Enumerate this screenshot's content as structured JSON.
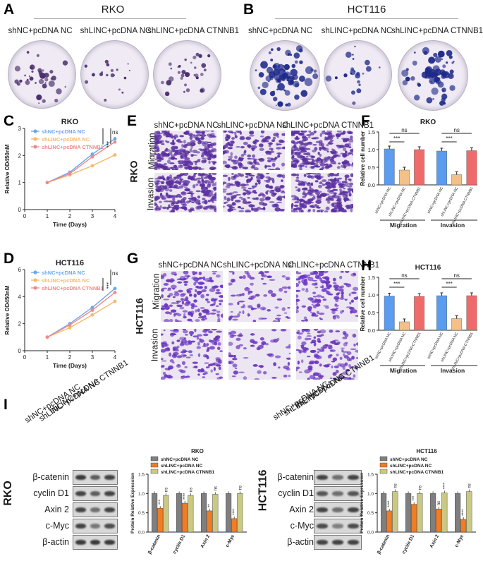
{
  "panels": {
    "A": {
      "letter": "A",
      "cell_line": "RKO",
      "groups": [
        "shNC+pcDNA NC",
        "shLINC+pcDNA NC",
        "shLINC+pcDNA CTNNB1"
      ]
    },
    "B": {
      "letter": "B",
      "cell_line": "HCT116",
      "groups": [
        "shNC+pcDNA NC",
        "shLINC+pcDNA NC",
        "shLINC+pcDNA CTNNB1"
      ]
    },
    "C": {
      "letter": "C"
    },
    "D": {
      "letter": "D"
    },
    "E": {
      "letter": "E",
      "cell_line": "RKO",
      "cols": [
        "shNC+pcDNA NC",
        "shLINC+pcDNA NC",
        "shLINC+pcDNA CTNNB1"
      ],
      "rows": [
        "Migration",
        "Invasion"
      ]
    },
    "F": {
      "letter": "F"
    },
    "G": {
      "letter": "G",
      "cell_line": "HCT116",
      "cols": [
        "shNC+pcDNA NC",
        "shLINC+pcDNA NC",
        "shLINC+pcDNA CTNNB1"
      ],
      "rows": [
        "Migration",
        "Invasion"
      ]
    },
    "H": {
      "letter": "H"
    },
    "I": {
      "letter": "I",
      "rko_label": "RKO",
      "hct_label": "HCT116",
      "lanes": [
        "shNC+pcDNA NC",
        "shLINC+pcDNA NC",
        "shLINC+pcDNA CTNNB1"
      ],
      "proteins": [
        "β-catenin",
        "cyclin D1",
        "Axin 2",
        "c-Myc",
        "β-actin"
      ]
    }
  },
  "colors": {
    "blue": "#6aa7ee",
    "orange": "#f5b96a",
    "pink": "#f08a8a",
    "bar_blue": "#5b9bf0",
    "bar_orange": "#f2c088",
    "bar_red": "#ef6b6b",
    "wb_gray": "#7f7f7f",
    "wb_orange": "#f07c24",
    "wb_olive": "#c9c985"
  },
  "chart_data": [
    {
      "id": "C",
      "type": "line",
      "title": "RKO",
      "xlabel": "Time (Days)",
      "ylabel": "Relative OD450nM",
      "x": [
        1,
        2,
        3,
        4
      ],
      "xlim": [
        0,
        4
      ],
      "ylim": [
        0,
        3
      ],
      "xticks": [
        "0",
        "1",
        "2",
        "3",
        "4"
      ],
      "yticks": [
        "0",
        "1",
        "2",
        "3"
      ],
      "series": [
        {
          "name": "shNC+pcDNA NC",
          "values": [
            1.0,
            1.38,
            2.05,
            2.62
          ]
        },
        {
          "name": "shLINC+pcDNA NC",
          "values": [
            1.0,
            1.28,
            1.62,
            2.02
          ]
        },
        {
          "name": "shLINC+pcDNA CTNNB1",
          "values": [
            1.0,
            1.33,
            1.95,
            2.5
          ]
        }
      ],
      "annotations": [
        "***",
        "ns"
      ]
    },
    {
      "id": "D",
      "type": "line",
      "title": "HCT116",
      "xlabel": "Time (Days)",
      "ylabel": "Relative OD450nM",
      "x": [
        1,
        2,
        3,
        4
      ],
      "xlim": [
        0,
        4
      ],
      "ylim": [
        0,
        6
      ],
      "xticks": [
        "0",
        "1",
        "2",
        "3",
        "4"
      ],
      "yticks": [
        "0",
        "2",
        "4",
        "6"
      ],
      "series": [
        {
          "name": "shNC+pcDNA NC",
          "values": [
            1.0,
            2.0,
            3.2,
            4.6
          ]
        },
        {
          "name": "shLINC+pcDNA NC",
          "values": [
            1.0,
            1.7,
            2.65,
            3.65
          ]
        },
        {
          "name": "shLINC+pcDNA CTNNB1",
          "values": [
            1.0,
            1.9,
            3.0,
            4.3
          ]
        }
      ],
      "annotations": [
        "***",
        "ns"
      ]
    },
    {
      "id": "F",
      "type": "bar",
      "title": "RKO",
      "ylabel": "Relative cell number",
      "ylim": [
        0,
        1.5
      ],
      "yticks": [
        "0.0",
        "0.5",
        "1.0",
        "1.5"
      ],
      "categories": [
        "shNC+pcDNA NC",
        "shLINC+pcDNA NC",
        "shLINC+pcDNA CTNNB1",
        "shNC+pcDNA NC",
        "shLINC+pcDNA NC",
        "shLINC+pcDNA CTNNB1"
      ],
      "values": [
        1.02,
        0.42,
        1.0,
        0.96,
        0.29,
        0.97
      ],
      "groups": [
        "Migration",
        "Invasion"
      ],
      "annotations": [
        "ns",
        "***",
        "ns",
        "***"
      ]
    },
    {
      "id": "H",
      "type": "bar",
      "title": "HCT116",
      "ylabel": "Relative cell number",
      "ylim": [
        0,
        1.5
      ],
      "yticks": [
        "0.0",
        "0.5",
        "1.0",
        "1.5"
      ],
      "categories": [
        "shNC+pcDNA NC",
        "shLINC+pcDNA NC",
        "shLINC+pcDNA CTNNB1",
        "shNC+pcDNA NC",
        "shLINC+pcDNA NC",
        "shLINC+pcDNA CTNNB1"
      ],
      "values": [
        0.97,
        0.24,
        0.96,
        0.98,
        0.33,
        0.98
      ],
      "groups": [
        "Migration",
        "Invasion"
      ],
      "annotations": [
        "ns",
        "***",
        "ns",
        "***"
      ]
    },
    {
      "id": "I-RKO",
      "type": "bar",
      "title": "RKO",
      "ylabel": "Protein Relative Expression",
      "ylim": [
        0,
        1.5
      ],
      "yticks": [
        "0.0",
        "0.5",
        "1.0",
        "1.5"
      ],
      "categories": [
        "β-catenin",
        "cyclin D1",
        "Axin 2",
        "c-Myc"
      ],
      "series": [
        {
          "name": "shNC+pcDNA NC",
          "values": [
            1.0,
            1.0,
            1.0,
            1.0
          ]
        },
        {
          "name": "shLINC+pcDNA NC",
          "values": [
            0.62,
            0.75,
            0.55,
            0.35
          ]
        },
        {
          "name": "shLINC+pcDNA CTNNB1",
          "values": [
            0.95,
            0.95,
            0.98,
            1.0
          ]
        }
      ],
      "annotations": [
        [
          "***",
          "ns"
        ],
        [
          "****",
          "ns"
        ],
        [
          "**",
          "ns"
        ],
        [
          "****",
          "ns"
        ]
      ]
    },
    {
      "id": "I-HCT116",
      "type": "bar",
      "title": "HCT116",
      "ylabel": "Protein Relative Expression",
      "ylim": [
        0,
        1.5
      ],
      "yticks": [
        "0.0",
        "0.5",
        "1.0",
        "1.5"
      ],
      "categories": [
        "β-catenin",
        "cyclin D1",
        "Axin 2",
        "c-Myc"
      ],
      "series": [
        {
          "name": "shNC+pcDNA NC",
          "values": [
            1.0,
            1.0,
            1.0,
            1.0
          ]
        },
        {
          "name": "shLINC+pcDNA NC",
          "values": [
            0.55,
            0.72,
            0.6,
            0.33
          ]
        },
        {
          "name": "shLINC+pcDNA CTNNB1",
          "values": [
            1.05,
            1.0,
            1.02,
            1.05
          ]
        }
      ],
      "annotations": [
        [
          "****",
          "ns"
        ],
        [
          "***",
          "ns"
        ],
        [
          "ns",
          "****"
        ],
        [
          "****",
          "ns"
        ]
      ]
    }
  ]
}
